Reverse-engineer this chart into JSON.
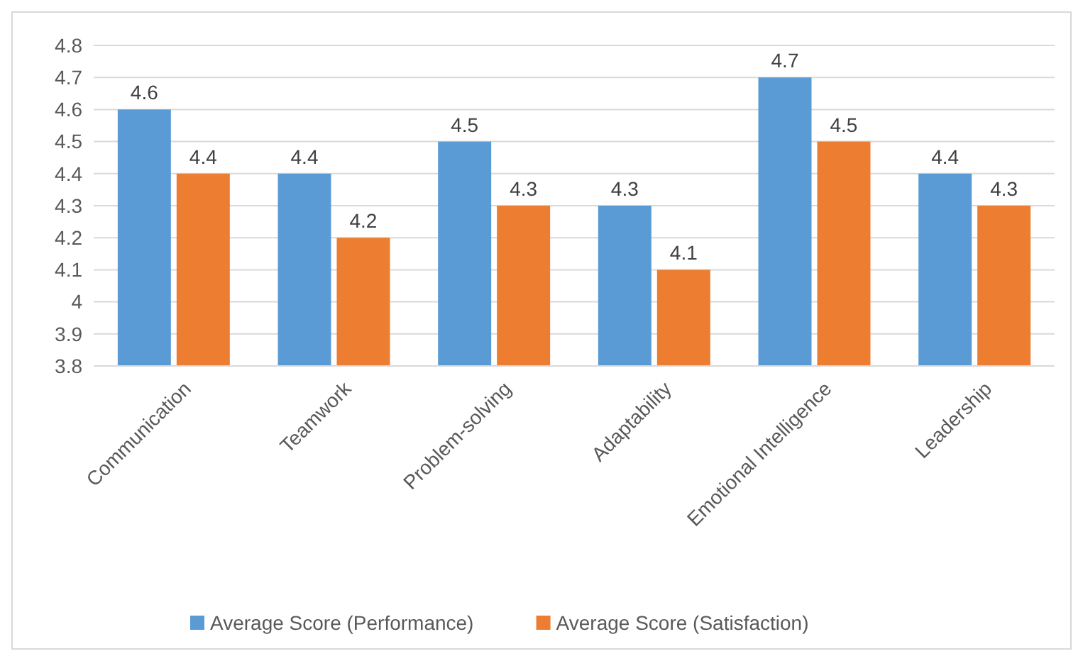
{
  "chart_data": {
    "type": "bar",
    "categories": [
      "Communication",
      "Teamwork",
      "Problem-solving",
      "Adaptability",
      "Emotional Intelligence",
      "Leadership"
    ],
    "series": [
      {
        "name": "Average Score (Performance)",
        "color": "#5b9bd5",
        "values": [
          4.6,
          4.4,
          4.5,
          4.3,
          4.7,
          4.4
        ]
      },
      {
        "name": "Average Score (Satisfaction)",
        "color": "#ed7d31",
        "values": [
          4.4,
          4.2,
          4.3,
          4.1,
          4.5,
          4.3
        ]
      }
    ],
    "ylim": [
      3.8,
      4.8
    ],
    "yticks": [
      3.8,
      3.9,
      4,
      4.1,
      4.2,
      4.3,
      4.4,
      4.5,
      4.6,
      4.7,
      4.8
    ],
    "grid": "y",
    "legend": "bottom",
    "data_labels": true
  }
}
